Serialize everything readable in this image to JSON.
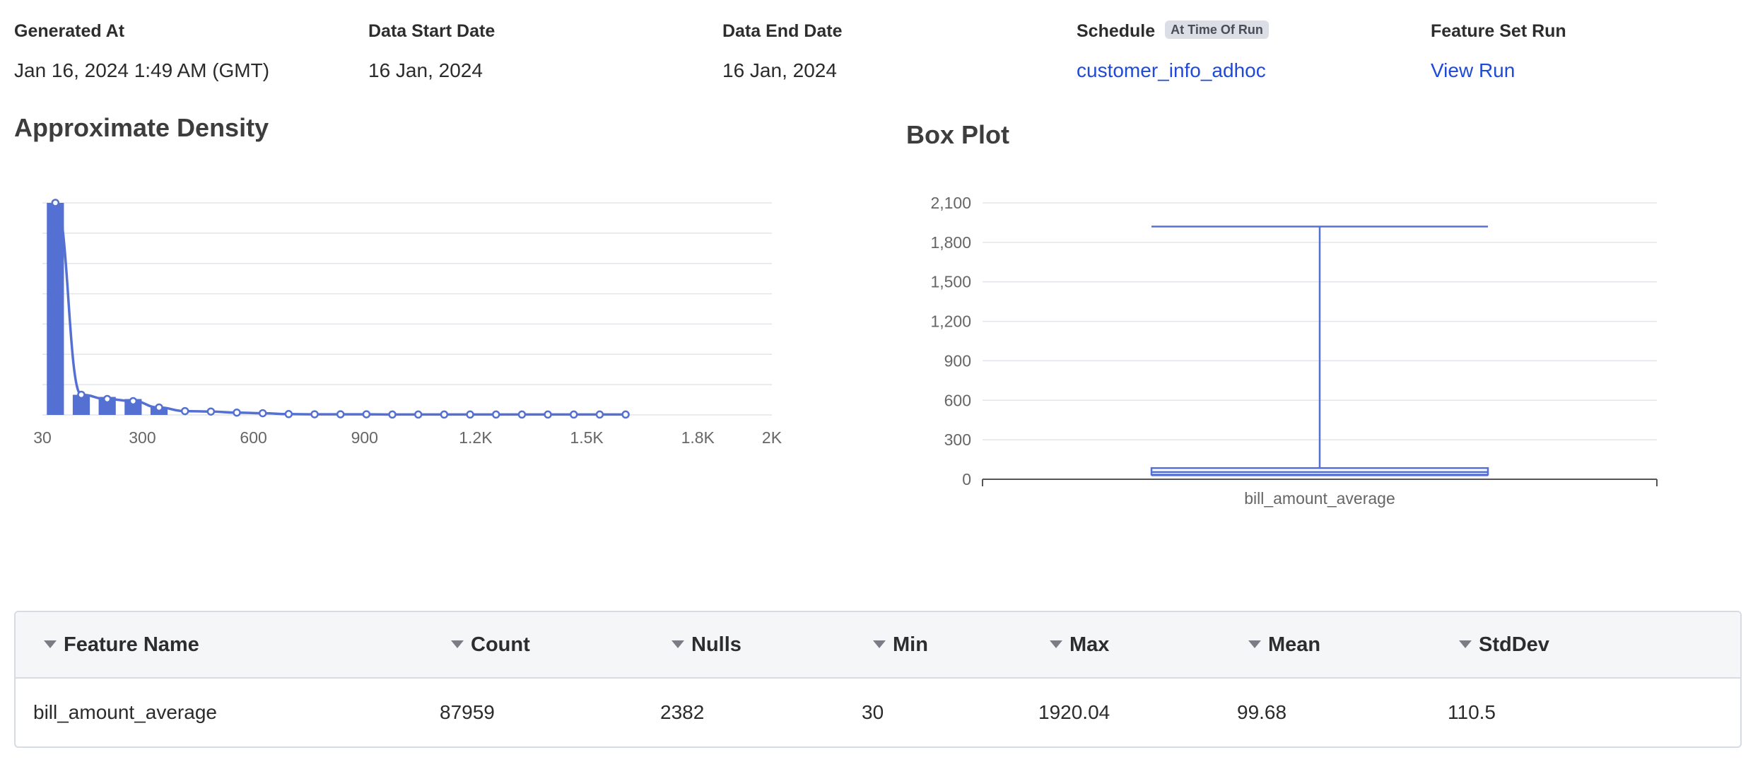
{
  "meta": {
    "generated_at": {
      "label": "Generated At",
      "value": "Jan 16, 2024 1:49 AM (GMT)"
    },
    "data_start_date": {
      "label": "Data Start Date",
      "value": "16 Jan, 2024"
    },
    "data_end_date": {
      "label": "Data End Date",
      "value": "16 Jan, 2024"
    },
    "schedule": {
      "label": "Schedule",
      "badge": "At Time Of Run",
      "value": "customer_info_adhoc"
    },
    "feature_set_run": {
      "label": "Feature Set Run",
      "value": "View Run"
    }
  },
  "colors": {
    "accent": "#5570d3",
    "link": "#1f49d8",
    "grid": "#e2e5ea",
    "axis": "#666666"
  },
  "chart_data": [
    {
      "type": "bar",
      "title": "Approximate Density",
      "x_tick_labels": [
        "30",
        "300",
        "600",
        "900",
        "1.2K",
        "1.5K",
        "1.8K",
        "2K"
      ],
      "x_tick_values": [
        30,
        300,
        600,
        900,
        1200,
        1500,
        1800,
        2000
      ],
      "xlim": [
        30,
        2000
      ],
      "bar_width": 50,
      "bars": {
        "x": [
          65,
          135,
          205,
          275,
          345
        ],
        "values": [
          1.0,
          0.095,
          0.085,
          0.075,
          0.035
        ]
      },
      "density_curve": {
        "x": [
          65,
          135,
          205,
          275,
          345,
          415,
          485,
          555,
          625,
          695,
          765,
          835,
          905,
          975,
          1045,
          1115,
          1185,
          1255,
          1325,
          1395,
          1465,
          1535,
          1605
        ],
        "y": [
          1.0,
          0.095,
          0.075,
          0.065,
          0.035,
          0.018,
          0.016,
          0.011,
          0.008,
          0.004,
          0.003,
          0.003,
          0.003,
          0.002,
          0.002,
          0.002,
          0.002,
          0.002,
          0.002,
          0.002,
          0.002,
          0.002,
          0.002
        ]
      },
      "grid": true
    },
    {
      "type": "box",
      "title": "Box Plot",
      "categories": [
        "bill_amount_average"
      ],
      "ylim": [
        0,
        2100
      ],
      "y_ticks": [
        0,
        300,
        600,
        900,
        1200,
        1500,
        1800,
        2100
      ],
      "y_tick_labels": [
        "0",
        "300",
        "600",
        "900",
        "1,200",
        "1,500",
        "1,800",
        "2,100"
      ],
      "box": {
        "min": 30,
        "q1": 35,
        "median": 55,
        "q3": 85,
        "max": 1920.04
      },
      "grid": true
    }
  ],
  "table": {
    "columns": [
      {
        "key": "feature_name",
        "label": "Feature Name"
      },
      {
        "key": "count",
        "label": "Count"
      },
      {
        "key": "nulls",
        "label": "Nulls"
      },
      {
        "key": "min",
        "label": "Min"
      },
      {
        "key": "max",
        "label": "Max"
      },
      {
        "key": "mean",
        "label": "Mean"
      },
      {
        "key": "stddev",
        "label": "StdDev"
      }
    ],
    "rows": [
      {
        "feature_name": "bill_amount_average",
        "count": "87959",
        "nulls": "2382",
        "min": "30",
        "max": "1920.04",
        "mean": "99.68",
        "stddev": "110.5"
      }
    ]
  }
}
